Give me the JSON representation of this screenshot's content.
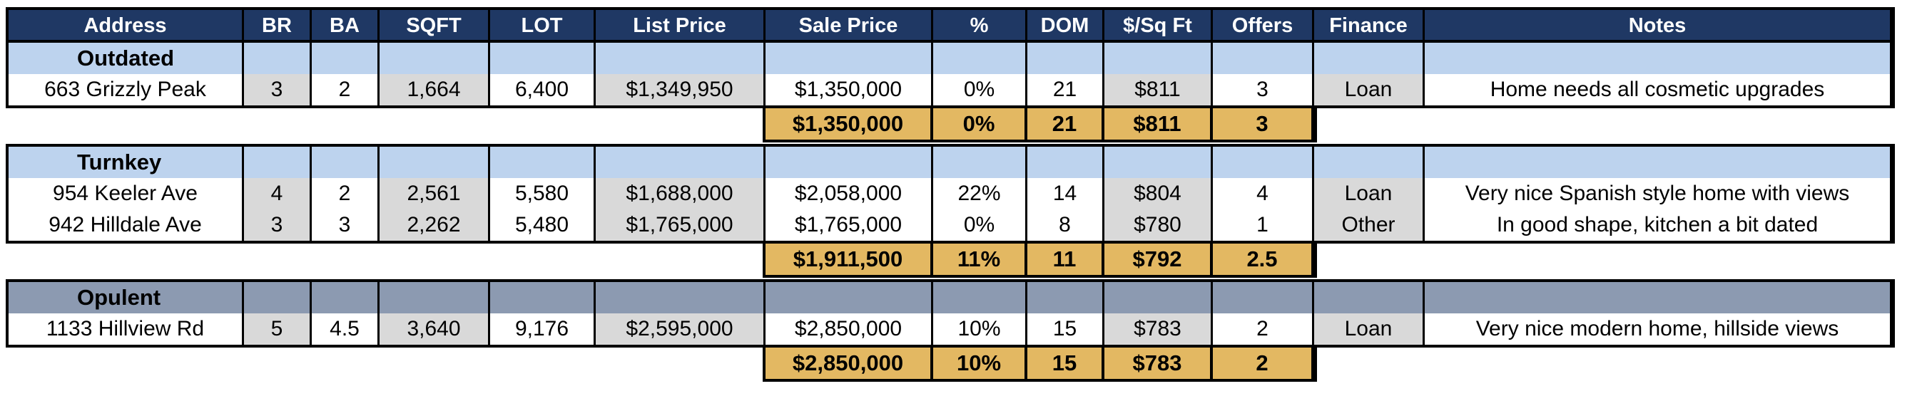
{
  "headers": [
    "Address",
    "BR",
    "BA",
    "SQFT",
    "LOT",
    "List Price",
    "Sale Price",
    "%",
    "DOM",
    "$/Sq Ft",
    "Offers",
    "Finance",
    "Notes"
  ],
  "groups": [
    {
      "name": "Outdated",
      "style": "blue",
      "rows": [
        [
          "663 Grizzly Peak",
          "3",
          "2",
          "1,664",
          "6,400",
          "$1,349,950",
          "$1,350,000",
          "0%",
          "21",
          "$811",
          "3",
          "Loan",
          "Home needs all cosmetic upgrades"
        ]
      ],
      "summary": [
        "$1,350,000",
        "0%",
        "21",
        "$811",
        "3"
      ]
    },
    {
      "name": "Turnkey",
      "style": "blue",
      "rows": [
        [
          "954 Keeler Ave",
          "4",
          "2",
          "2,561",
          "5,580",
          "$1,688,000",
          "$2,058,000",
          "22%",
          "14",
          "$804",
          "4",
          "Loan",
          "Very nice Spanish style home with views"
        ],
        [
          "942 Hilldale Ave",
          "3",
          "3",
          "2,262",
          "5,480",
          "$1,765,000",
          "$1,765,000",
          "0%",
          "8",
          "$780",
          "1",
          "Other",
          "In good shape, kitchen a bit dated"
        ]
      ],
      "summary": [
        "$1,911,500",
        "11%",
        "11",
        "$792",
        "2.5"
      ]
    },
    {
      "name": "Opulent",
      "style": "steel",
      "rows": [
        [
          "1133 Hillview Rd",
          "5",
          "4.5",
          "3,640",
          "9,176",
          "$2,595,000",
          "$2,850,000",
          "10%",
          "15",
          "$783",
          "2",
          "Loan",
          "Very nice modern home, hillside views"
        ]
      ],
      "summary": [
        "$2,850,000",
        "10%",
        "15",
        "$783",
        "2"
      ]
    }
  ],
  "colors": {
    "header": "#1f3864",
    "section_blue": "#bdd3ee",
    "section_steel": "#8c9ab1",
    "summary": "#e3b862",
    "shaded_cell": "#d9d9d9"
  }
}
